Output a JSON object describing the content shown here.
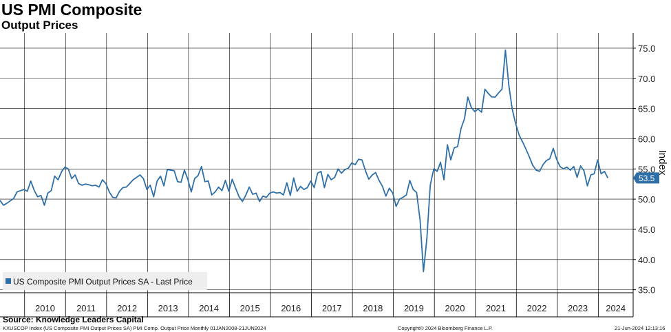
{
  "header": {
    "title": "US PMI Composite",
    "subtitle": "Output Prices"
  },
  "source": "Source: Knowledge Leaders Capital",
  "footer": {
    "left": "KXUSCOP Index (US Composite PMI Output Prices SA) PMI Comp. Output Price  Monthly 01JAN2008-21JUN2024",
    "center": "Copyright© 2024 Bloomberg Finance L.P.",
    "right": "21-Jun-2024 12:13:16"
  },
  "colors": {
    "line": "#2e6fa8",
    "grid": "#000000",
    "axis": "#000000",
    "legend_bg": "#eeeeee",
    "last_badge": "#2e6fa8"
  },
  "chart_data": {
    "type": "line",
    "title": "US PMI Composite",
    "subtitle": "Output Prices",
    "ylabel": "Index",
    "y_axis_side": "right",
    "ylim": [
      34.5,
      77.5
    ],
    "yticks": [
      35.0,
      40.0,
      45.0,
      50.0,
      55.0,
      60.0,
      65.0,
      70.0,
      75.0
    ],
    "ytick_labels": [
      "35.0",
      "40.0",
      "45.0",
      "50.0",
      "55.0",
      "60.0",
      "65.0",
      "70.0",
      "75.0"
    ],
    "xlim": [
      2009.4,
      2024.85
    ],
    "x_labels": [
      "2010",
      "2011",
      "2012",
      "2013",
      "2014",
      "2015",
      "2016",
      "2017",
      "2018",
      "2019",
      "2020",
      "2021",
      "2022",
      "2023",
      "2024"
    ],
    "grid": true,
    "legend": {
      "position": "bottom-left",
      "label": "US Composite PMI Output Prices SA - Last Price"
    },
    "last_value": "53.5",
    "series": [
      {
        "name": "US Composite PMI Output Prices SA - Last Price",
        "x_start": 2009.4,
        "x_step_months": 1,
        "values": [
          49.8,
          49.0,
          49.3,
          49.7,
          50.1,
          51.2,
          51.4,
          51.6,
          51.3,
          53.0,
          51.5,
          50.4,
          50.6,
          49.0,
          51.0,
          51.4,
          53.8,
          53.2,
          54.5,
          55.3,
          55.0,
          53.4,
          54.0,
          52.6,
          52.3,
          52.5,
          52.4,
          52.2,
          52.3,
          52.0,
          53.2,
          52.6,
          51.2,
          50.3,
          50.2,
          51.3,
          51.9,
          52.0,
          52.6,
          53.2,
          53.6,
          54.0,
          53.4,
          51.6,
          52.3,
          50.4,
          53.0,
          53.8,
          52.2,
          54.9,
          54.8,
          54.7,
          52.9,
          52.8,
          54.8,
          53.3,
          51.2,
          53.4,
          53.9,
          55.4,
          52.9,
          53.0,
          50.7,
          51.2,
          52.0,
          51.4,
          53.1,
          51.3,
          53.3,
          51.8,
          50.4,
          49.6,
          50.7,
          52.0,
          50.8,
          51.0,
          49.6,
          50.5,
          50.3,
          51.0,
          51.2,
          51.0,
          51.1,
          50.7,
          52.7,
          50.6,
          53.5,
          51.3,
          52.1,
          51.6,
          51.9,
          53.0,
          51.9,
          54.3,
          54.6,
          51.9,
          54.1,
          53.2,
          53.6,
          55.0,
          54.3,
          54.9,
          55.1,
          56.0,
          55.7,
          56.6,
          56.5,
          54.7,
          53.3,
          54.0,
          54.4,
          53.1,
          52.1,
          50.5,
          51.8,
          51.0,
          48.8,
          50.0,
          50.3,
          50.7,
          53.1,
          51.6,
          51.1,
          46.5,
          38.0,
          43.5,
          52.3,
          55.0,
          54.6,
          56.1,
          53.2,
          59.0,
          56.5,
          58.5,
          58.7,
          61.7,
          63.3,
          66.9,
          65.2,
          64.5,
          64.9,
          64.4,
          68.2,
          67.5,
          66.9,
          66.9,
          67.6,
          68.2,
          74.7,
          68.8,
          64.9,
          62.5,
          60.6,
          59.5,
          58.3,
          57.0,
          55.6,
          54.8,
          54.6,
          55.7,
          56.4,
          56.7,
          58.4,
          56.6,
          55.4,
          55.0,
          55.3,
          54.8,
          55.4,
          53.6,
          55.5,
          54.7,
          52.2,
          54.0,
          54.2,
          56.5,
          54.2,
          54.6,
          53.5
        ]
      }
    ]
  }
}
